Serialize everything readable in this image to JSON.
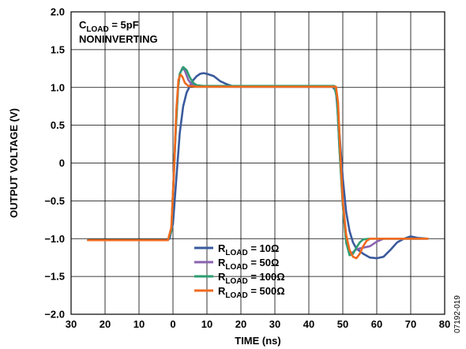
{
  "chart_data": {
    "type": "line",
    "xlabel": "TIME (ns)",
    "ylabel": "OUTPUT VOLTAGE (V)",
    "xlim": [
      -30,
      80
    ],
    "ylim": [
      -2.0,
      2.0
    ],
    "xticks": [
      -30,
      -20,
      -10,
      0,
      10,
      20,
      30,
      40,
      50,
      60,
      70,
      80
    ],
    "xtick_labels": [
      "30",
      "20",
      "10",
      "0",
      "10",
      "20",
      "30",
      "40",
      "50",
      "60",
      "70",
      "80"
    ],
    "yticks": [
      -2.0,
      -1.5,
      -1.0,
      -0.5,
      0,
      0.5,
      1.0,
      1.5,
      2.0
    ],
    "ytick_labels": [
      "−2.0",
      "−1.5",
      "−1.0",
      "−0.5",
      "0",
      "0.5",
      "1.0",
      "1.5",
      "2.0"
    ],
    "grid": true,
    "annotation": {
      "line1_main": "C",
      "line1_sub": "LOAD",
      "line1_rest": " = 5pF",
      "line2": "NONINVERTING"
    },
    "legend_position": "bottom-center",
    "figure_id": "07192-019",
    "series": [
      {
        "name_main": "R",
        "name_sub": "LOAD",
        "name_rest": " = 10Ω",
        "color": "#3a5a9c",
        "points": [
          [
            -25,
            -1.02
          ],
          [
            -2,
            -1.02
          ],
          [
            -1,
            -1.0
          ],
          [
            0,
            -0.8
          ],
          [
            1,
            -0.2
          ],
          [
            2,
            0.4
          ],
          [
            3,
            0.75
          ],
          [
            4,
            0.93
          ],
          [
            5,
            1.02
          ],
          [
            6,
            1.1
          ],
          [
            7,
            1.15
          ],
          [
            8,
            1.18
          ],
          [
            9,
            1.19
          ],
          [
            10,
            1.18
          ],
          [
            12,
            1.15
          ],
          [
            14,
            1.08
          ],
          [
            16,
            1.04
          ],
          [
            18,
            1.01
          ],
          [
            22,
            1.01
          ],
          [
            30,
            1.01
          ],
          [
            40,
            1.01
          ],
          [
            47,
            1.01
          ],
          [
            48,
            0.95
          ],
          [
            49,
            0.4
          ],
          [
            50,
            -0.2
          ],
          [
            51,
            -0.65
          ],
          [
            52,
            -0.9
          ],
          [
            53,
            -1.05
          ],
          [
            54,
            -1.13
          ],
          [
            56,
            -1.2
          ],
          [
            58,
            -1.25
          ],
          [
            60,
            -1.26
          ],
          [
            62,
            -1.24
          ],
          [
            64,
            -1.15
          ],
          [
            66,
            -1.05
          ],
          [
            68,
            -1.0
          ],
          [
            70,
            -0.97
          ],
          [
            72,
            -0.99
          ],
          [
            75,
            -1.0
          ]
        ]
      },
      {
        "name_main": "R",
        "name_sub": "LOAD",
        "name_rest": " = 50Ω",
        "color": "#8a63b0",
        "points": [
          [
            -25,
            -1.02
          ],
          [
            -1.5,
            -1.02
          ],
          [
            -0.5,
            -0.9
          ],
          [
            0,
            -0.4
          ],
          [
            0.8,
            0.4
          ],
          [
            1.5,
            1.0
          ],
          [
            2,
            1.18
          ],
          [
            2.8,
            1.26
          ],
          [
            3.5,
            1.22
          ],
          [
            4.5,
            1.1
          ],
          [
            5.5,
            1.04
          ],
          [
            7,
            1.02
          ],
          [
            10,
            1.02
          ],
          [
            20,
            1.02
          ],
          [
            30,
            1.02
          ],
          [
            40,
            1.02
          ],
          [
            47.5,
            1.02
          ],
          [
            48.3,
            0.85
          ],
          [
            49,
            0.2
          ],
          [
            50,
            -0.55
          ],
          [
            51,
            -1.05
          ],
          [
            52,
            -1.2
          ],
          [
            53,
            -1.18
          ],
          [
            54,
            -1.14
          ],
          [
            56,
            -1.12
          ],
          [
            58,
            -1.1
          ],
          [
            60,
            -1.04
          ],
          [
            62,
            -1.0
          ],
          [
            65,
            -1.0
          ],
          [
            75,
            -1.0
          ]
        ]
      },
      {
        "name_main": "R",
        "name_sub": "LOAD",
        "name_rest": " = 100Ω",
        "color": "#2e9e72",
        "points": [
          [
            -25,
            -1.02
          ],
          [
            -1.5,
            -1.02
          ],
          [
            -0.5,
            -0.9
          ],
          [
            0,
            -0.4
          ],
          [
            0.8,
            0.4
          ],
          [
            1.5,
            1.0
          ],
          [
            2,
            1.18
          ],
          [
            3,
            1.27
          ],
          [
            4,
            1.23
          ],
          [
            5,
            1.13
          ],
          [
            6,
            1.06
          ],
          [
            7,
            1.03
          ],
          [
            9,
            1.02
          ],
          [
            20,
            1.02
          ],
          [
            30,
            1.02
          ],
          [
            40,
            1.02
          ],
          [
            47.5,
            1.02
          ],
          [
            48.3,
            0.85
          ],
          [
            49,
            0.2
          ],
          [
            50,
            -0.55
          ],
          [
            51,
            -1.05
          ],
          [
            52,
            -1.22
          ],
          [
            53,
            -1.2
          ],
          [
            54,
            -1.12
          ],
          [
            55,
            -1.05
          ],
          [
            56,
            -1.01
          ],
          [
            58,
            -1.0
          ],
          [
            75,
            -1.0
          ]
        ]
      },
      {
        "name_main": "R",
        "name_sub": "LOAD",
        "name_rest": " = 500Ω",
        "color": "#f06a1e",
        "points": [
          [
            -25,
            -1.02
          ],
          [
            -1.5,
            -1.02
          ],
          [
            -0.5,
            -0.85
          ],
          [
            0.2,
            -0.2
          ],
          [
            1,
            0.7
          ],
          [
            1.6,
            1.1
          ],
          [
            2.2,
            1.17
          ],
          [
            2.8,
            1.14
          ],
          [
            3.5,
            1.06
          ],
          [
            4.5,
            1.02
          ],
          [
            7,
            1.01
          ],
          [
            20,
            1.01
          ],
          [
            30,
            1.01
          ],
          [
            40,
            1.01
          ],
          [
            48,
            1.01
          ],
          [
            48.6,
            0.8
          ],
          [
            49.3,
            0.1
          ],
          [
            50,
            -0.5
          ],
          [
            51,
            -0.95
          ],
          [
            52,
            -1.15
          ],
          [
            53,
            -1.24
          ],
          [
            54,
            -1.26
          ],
          [
            55,
            -1.2
          ],
          [
            56,
            -1.1
          ],
          [
            57,
            -1.03
          ],
          [
            58,
            -1.0
          ],
          [
            75,
            -1.0
          ]
        ]
      }
    ]
  }
}
